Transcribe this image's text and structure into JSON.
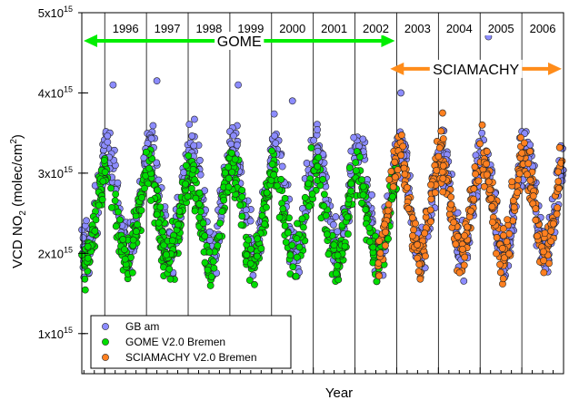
{
  "chart_data": {
    "type": "scatter",
    "xlabel": "Year",
    "ylabel": "VCD NO2 (molec/cm2)",
    "ylabel_main": "VCD NO",
    "ylabel_sub": "2",
    "ylabel_rest": " (molec/cm",
    "ylabel_sup": "2",
    "ylabel_close": ")",
    "xlim": [
      1995.45,
      2007.0
    ],
    "ylim": [
      500000000000000.0,
      5000000000000000.0
    ],
    "yscale_note": "x10^15",
    "y_ticks": [
      {
        "value": 1000000000000000.0,
        "mantissa": "1x10",
        "exp": "15"
      },
      {
        "value": 2000000000000000.0,
        "mantissa": "2x10",
        "exp": "15"
      },
      {
        "value": 3000000000000000.0,
        "mantissa": "3x10",
        "exp": "15"
      },
      {
        "value": 4000000000000000.0,
        "mantissa": "4x10",
        "exp": "15"
      },
      {
        "value": 5000000000000000.0,
        "mantissa": "5x10",
        "exp": "15"
      }
    ],
    "year_labels": [
      {
        "label": "1996",
        "x": 1996.5
      },
      {
        "label": "1997",
        "x": 1997.5
      },
      {
        "label": "1998",
        "x": 1998.5
      },
      {
        "label": "1999",
        "x": 1999.5
      },
      {
        "label": "2000",
        "x": 2000.5
      },
      {
        "label": "2001",
        "x": 2001.5
      },
      {
        "label": "2002",
        "x": 2002.5
      },
      {
        "label": "2003",
        "x": 2003.5
      },
      {
        "label": "2004",
        "x": 2004.5
      },
      {
        "label": "2005",
        "x": 2005.5
      },
      {
        "label": "2006",
        "x": 2006.5
      }
    ],
    "year_boundaries": [
      1996,
      1997,
      1998,
      1999,
      2000,
      2001,
      2002,
      2003,
      2004,
      2005,
      2006
    ],
    "annotations": [
      {
        "text": "GOME",
        "from": 1995.45,
        "to": 2003.0,
        "y": 4650000000000000.0,
        "color": "#00ee00"
      },
      {
        "text": "SCIAMACHY",
        "from": 2002.8,
        "to": 2007.0,
        "y": 4300000000000000.0,
        "color": "#ff8c1a"
      }
    ],
    "legend_position": "bottom-left",
    "grid": false,
    "series": [
      {
        "name": "GB am",
        "color": "#8c8cff",
        "x_range": [
          1995.45,
          2007.0
        ],
        "seasonal": {
          "low": 2000000000000000.0,
          "high": 3300000000000000.0,
          "peak_phase": 0.08,
          "noise": 350000000000000.0
        },
        "spikes": [
          [
            1996.2,
            4100000000000000.0
          ],
          [
            1997.25,
            4150000000000000.0
          ],
          [
            1999.2,
            4100000000000000.0
          ],
          [
            2000.5,
            3900000000000000.0
          ],
          [
            2003.1,
            4000000000000000.0
          ],
          [
            2005.2,
            4700000000000000.0
          ]
        ]
      },
      {
        "name": "GOME V2.0 Bremen",
        "color": "#00dd00",
        "x_range": [
          1995.45,
          2003.0
        ],
        "seasonal": {
          "low": 1900000000000000.0,
          "high": 3000000000000000.0,
          "peak_phase": 0.05,
          "noise": 300000000000000.0
        },
        "spikes": []
      },
      {
        "name": "SCIAMACHY V2.0 Bremen",
        "color": "#ff8020",
        "x_range": [
          2002.55,
          2007.0
        ],
        "seasonal": {
          "low": 2000000000000000.0,
          "high": 3200000000000000.0,
          "peak_phase": 0.05,
          "noise": 300000000000000.0
        },
        "spikes": [
          [
            2004.1,
            3750000000000000.0
          ],
          [
            2005.05,
            3600000000000000.0
          ]
        ]
      }
    ]
  }
}
